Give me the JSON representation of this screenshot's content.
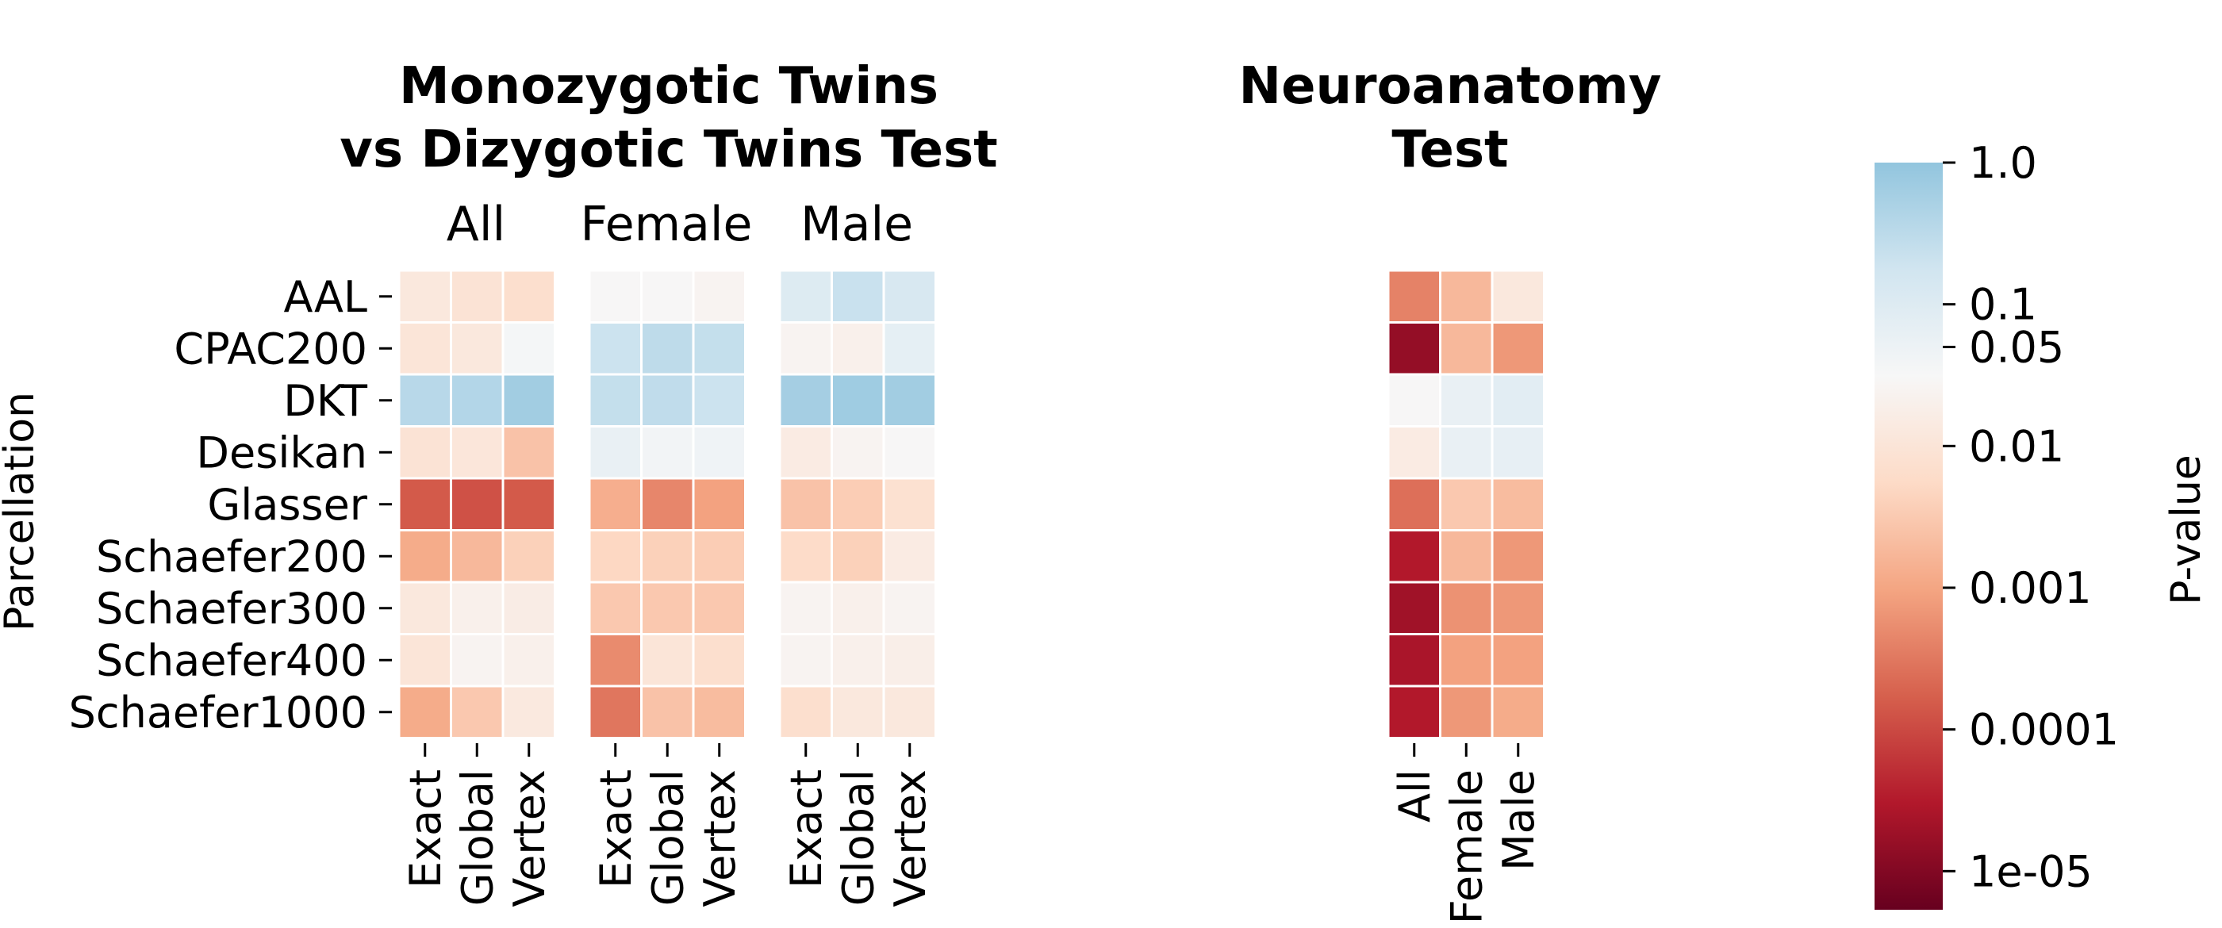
{
  "colors": {
    "background": "#ffffff",
    "cell_border": "#ffffff",
    "text": "#000000",
    "colormap": [
      "#67001f",
      "#b2182b",
      "#d6604d",
      "#f4a582",
      "#fddbc7",
      "#f7f7f7",
      "#d1e5f0",
      "#92c5de"
    ]
  },
  "figure": {
    "y_axis_label": "Parcellation",
    "colorbar_label": "P-value"
  },
  "chart_data": {
    "type": "heatmap",
    "rows": [
      "AAL",
      "CPAC200",
      "DKT",
      "Desikan",
      "Glasser",
      "Schaefer200",
      "Schaefer300",
      "Schaefer400",
      "Schaefer1000"
    ],
    "value_scale": "log10 p-value",
    "colorbar": {
      "scale": "log",
      "range": [
        5.34e-06,
        1.0
      ],
      "ticks": [
        {
          "value": 1.0,
          "label": "1.0"
        },
        {
          "value": 0.1,
          "label": "0.1"
        },
        {
          "value": 0.05,
          "label": "0.05"
        },
        {
          "value": 0.01,
          "label": "0.01"
        },
        {
          "value": 0.001,
          "label": "0.001"
        },
        {
          "value": 0.0001,
          "label": "0.0001"
        },
        {
          "value": 1e-05,
          "label": "1e-05"
        }
      ]
    },
    "panels": [
      {
        "title": [
          "Monozygotic Twins",
          "vs Dizygotic Twins Test"
        ],
        "groups": [
          {
            "name": "All",
            "columns": [
              "Exact",
              "Global",
              "Vertex"
            ],
            "values": [
              [
                0.012,
                0.009,
                0.007
              ],
              [
                0.01,
                0.012,
                0.035
              ],
              [
                0.35,
                0.4,
                0.65
              ],
              [
                0.009,
                0.011,
                0.0025
              ],
              [
                0.00015,
                0.00012,
                0.00015
              ],
              [
                0.0012,
                0.0018,
                0.004
              ],
              [
                0.012,
                0.02,
                0.016
              ],
              [
                0.01,
                0.025,
                0.02
              ],
              [
                0.0012,
                0.003,
                0.013
              ]
            ]
          },
          {
            "name": "Female",
            "columns": [
              "Exact",
              "Global",
              "Vertex"
            ],
            "values": [
              [
                0.03,
                0.03,
                0.025
              ],
              [
                0.2,
                0.3,
                0.25
              ],
              [
                0.25,
                0.28,
                0.2
              ],
              [
                0.06,
                0.04,
                0.045
              ],
              [
                0.0013,
                0.00045,
                0.0009
              ],
              [
                0.005,
                0.004,
                0.0035
              ],
              [
                0.003,
                0.003,
                0.003
              ],
              [
                0.0005,
                0.01,
                0.007
              ],
              [
                0.0003,
                0.0025,
                0.002
              ]
            ]
          },
          {
            "name": "Male",
            "columns": [
              "Exact",
              "Global",
              "Vertex"
            ],
            "values": [
              [
                0.1,
                0.22,
                0.13
              ],
              [
                0.025,
                0.02,
                0.07
              ],
              [
                0.6,
                0.7,
                0.65
              ],
              [
                0.015,
                0.025,
                0.03
              ],
              [
                0.0025,
                0.0035,
                0.008
              ],
              [
                0.006,
                0.004,
                0.015
              ],
              [
                0.025,
                0.02,
                0.025
              ],
              [
                0.025,
                0.02,
                0.018
              ],
              [
                0.007,
                0.012,
                0.012
              ]
            ]
          }
        ]
      },
      {
        "title": [
          "Neuroanatomy",
          "Test"
        ],
        "groups": [
          {
            "name": "",
            "columns": [
              "All",
              "Female",
              "Male"
            ],
            "values": [
              [
                0.0004,
                0.0018,
                0.012
              ],
              [
                1.5e-05,
                0.0018,
                0.0007
              ],
              [
                0.03,
                0.06,
                0.08
              ],
              [
                0.015,
                0.06,
                0.065
              ],
              [
                0.00025,
                0.003,
                0.002
              ],
              [
                3e-05,
                0.0018,
                0.0007
              ],
              [
                2e-05,
                0.0006,
                0.0007
              ],
              [
                2.5e-05,
                0.0009,
                0.0009
              ],
              [
                3e-05,
                0.0007,
                0.0012
              ]
            ]
          }
        ]
      }
    ]
  }
}
